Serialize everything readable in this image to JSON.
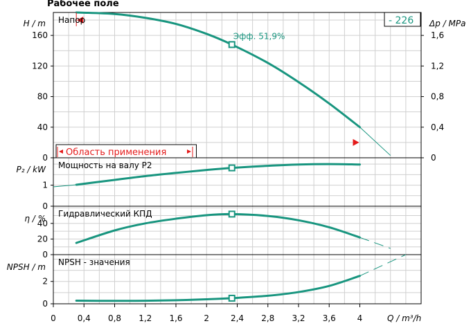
{
  "title": "Рабочее поле",
  "pump_label": "- 226",
  "colors": {
    "curve": "#18957f",
    "marker": "#e41b1b",
    "grid": "#cfcfcf",
    "axis": "#000000"
  },
  "chart_data": [
    {
      "type": "line",
      "panel": "head",
      "label": "Напор",
      "ylabel": "H / m",
      "ylabel_right": "Δp / MPa",
      "ylim": [
        0,
        190
      ],
      "yticks": [
        0,
        40,
        80,
        120,
        160
      ],
      "yticks_right": [
        "0",
        "0,4",
        "0,8",
        "1,2",
        "1,6"
      ],
      "duty_point": {
        "x": 2.33,
        "y": 148
      },
      "efficiency_label": "Эфф.  51,9%",
      "application_range": {
        "label": "Область применения",
        "x_min": 0.3,
        "x_max": 4.0
      },
      "series": [
        {
          "x": [
            0.3,
            0.8,
            1.2,
            1.6,
            2.0,
            2.33,
            2.8,
            3.2,
            3.6,
            4.0
          ],
          "y": [
            190,
            188,
            183,
            175,
            162,
            148,
            124,
            99,
            71,
            40
          ]
        }
      ],
      "extension": {
        "x": [
          4.0,
          4.4
        ],
        "y": [
          40,
          3
        ]
      }
    },
    {
      "type": "line",
      "panel": "power",
      "label": "Мощность на валу P2",
      "ylabel": "P₂ / kW",
      "ylim": [
        0,
        2.3
      ],
      "yticks": [
        0,
        1
      ],
      "duty_point": {
        "x": 2.33,
        "y": 1.82
      },
      "series": [
        {
          "x": [
            0.3,
            0.8,
            1.2,
            1.6,
            2.0,
            2.33,
            2.8,
            3.2,
            3.6,
            4.0
          ],
          "y": [
            1.02,
            1.25,
            1.43,
            1.58,
            1.72,
            1.82,
            1.92,
            1.98,
            2.0,
            1.98
          ]
        }
      ],
      "extension": {
        "x": [
          0.0,
          0.3
        ],
        "y": [
          0.92,
          1.02
        ]
      }
    },
    {
      "type": "line",
      "panel": "efficiency",
      "label": "Гидравлический КПД",
      "ylabel": "η / %",
      "ylim": [
        0,
        62
      ],
      "yticks": [
        0,
        20,
        40
      ],
      "duty_point": {
        "x": 2.33,
        "y": 51.9
      },
      "series": [
        {
          "x": [
            0.3,
            0.8,
            1.2,
            1.6,
            2.0,
            2.33,
            2.8,
            3.2,
            3.6,
            4.0
          ],
          "y": [
            15,
            31,
            40,
            46,
            50.5,
            51.9,
            49.5,
            44,
            35,
            22
          ]
        }
      ],
      "extension": {
        "x": [
          4.0,
          4.4
        ],
        "y": [
          22,
          8
        ]
      }
    },
    {
      "type": "line",
      "panel": "npsh",
      "label": "NPSH - значения",
      "ylabel": "NPSH / m",
      "ylim": [
        0,
        4.4
      ],
      "yticks": [
        0,
        2
      ],
      "duty_point": {
        "x": 2.33,
        "y": 0.5
      },
      "series": [
        {
          "x": [
            0.3,
            0.8,
            1.2,
            1.6,
            2.0,
            2.33,
            2.8,
            3.2,
            3.6,
            4.0
          ],
          "y": [
            0.28,
            0.26,
            0.27,
            0.32,
            0.4,
            0.5,
            0.72,
            1.05,
            1.6,
            2.5
          ]
        }
      ],
      "extension": {
        "x": [
          4.0,
          4.6
        ],
        "y": [
          2.5,
          4.4
        ]
      }
    }
  ],
  "xaxis": {
    "label": "Q / m³/h",
    "ticks": [
      "0",
      "0,4",
      "0,8",
      "1,2",
      "1,6",
      "2",
      "2,4",
      "2,8",
      "3,2",
      "3,6",
      "4"
    ],
    "xlim": [
      0,
      4.8
    ]
  }
}
